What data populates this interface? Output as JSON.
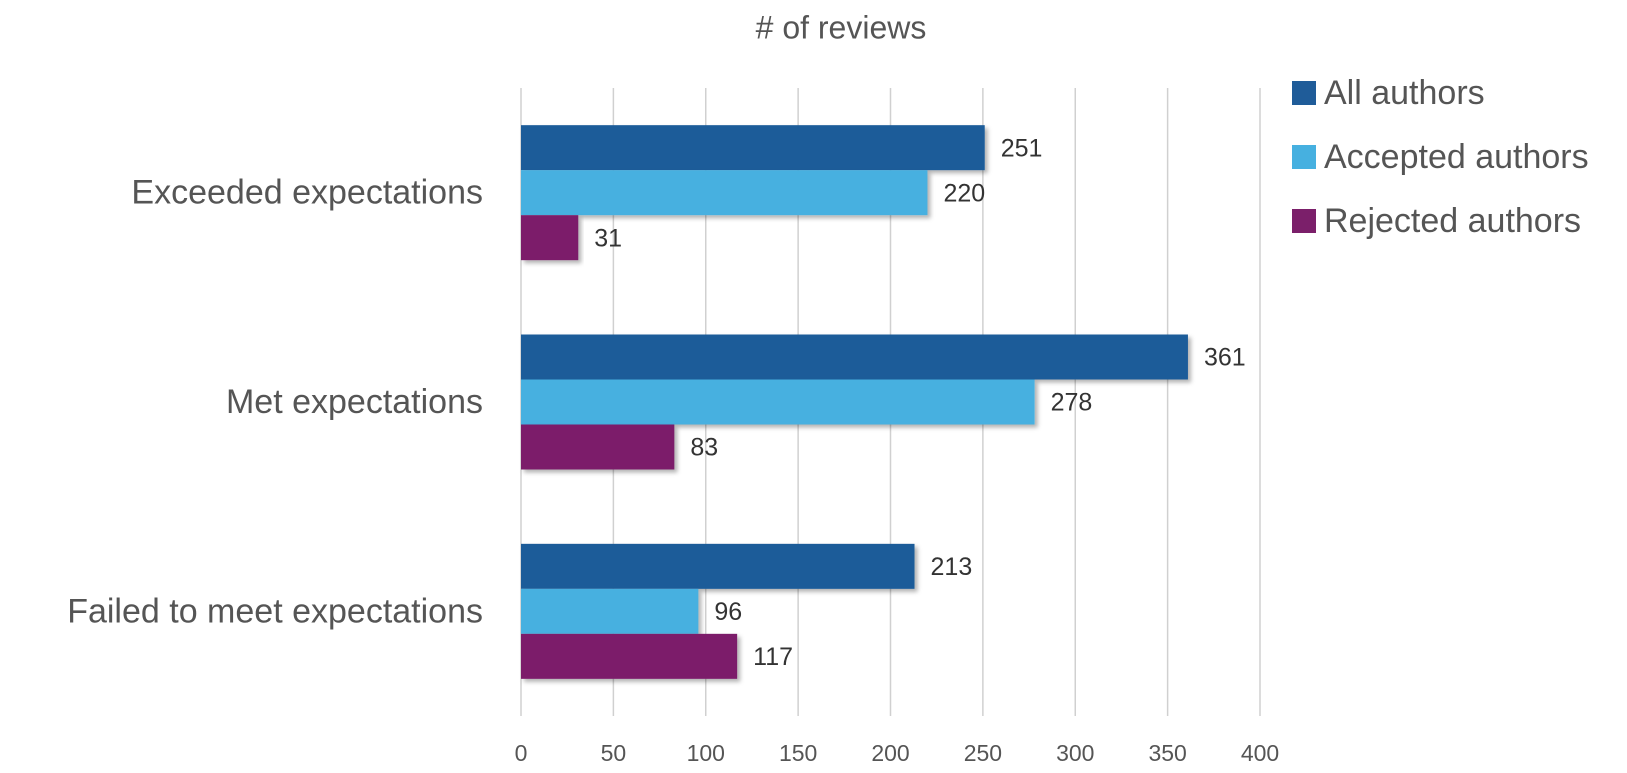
{
  "chart_data": {
    "type": "bar",
    "orientation": "horizontal",
    "title": "# of reviews",
    "categories": [
      "Exceeded expectations",
      "Met expectations",
      "Failed to meet expectations"
    ],
    "series": [
      {
        "name": "All authors",
        "color": "#1f5c99",
        "values": [
          251,
          361,
          213
        ]
      },
      {
        "name": "Accepted authors",
        "color": "#46b0e0",
        "values": [
          220,
          278,
          96
        ]
      },
      {
        "name": "Rejected authors",
        "color": "#7b1f6a",
        "values": [
          31,
          83,
          117
        ]
      }
    ],
    "xlim": [
      0,
      400
    ],
    "xticks": [
      0,
      50,
      100,
      150,
      200,
      250,
      300,
      350,
      400
    ],
    "grid": true,
    "legend": "right"
  }
}
